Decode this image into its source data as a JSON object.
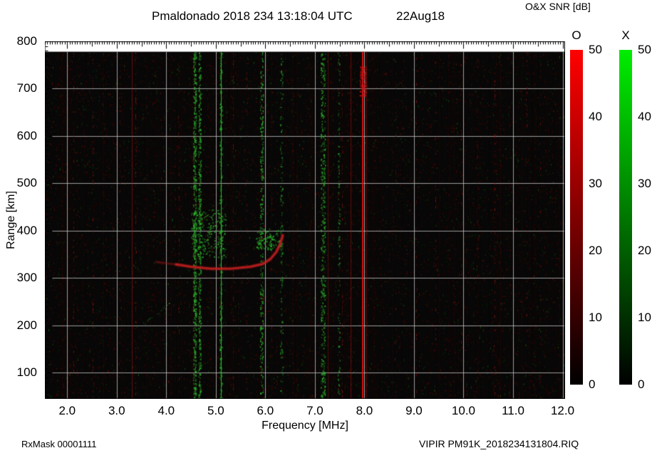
{
  "header": {
    "title": "Pmaldonado 2018 234 13:18:04 UTC",
    "date": "22Aug18",
    "colorbar_title": "O&X SNR [dB]"
  },
  "footer": {
    "left": "RxMask 00001111",
    "right": "VIPIR  PM91K_2018234131804.RIQ"
  },
  "chart_data": {
    "type": "heatmap",
    "title": "Pmaldonado 2018 234 13:18:04 UTC 22Aug18",
    "xlabel": "Frequency [MHz]",
    "ylabel": "Range [km]",
    "xlim": [
      1.55,
      12.05
    ],
    "ylim": [
      45,
      800
    ],
    "x_ticks": [
      2,
      3,
      4,
      5,
      6,
      7,
      8,
      9,
      10,
      11,
      12
    ],
    "x_tick_labels": [
      "2.0",
      "3.0",
      "4.0",
      "5.0",
      "6.0",
      "7.0",
      "8.0",
      "9.0",
      "10.0",
      "11.0",
      "12.0"
    ],
    "y_ticks": [
      800,
      700,
      600,
      500,
      400,
      300,
      200,
      100
    ],
    "y_grid": [
      100,
      200,
      300,
      400,
      500,
      600,
      700
    ],
    "grid": true,
    "grid_color": "rgba(205,205,205,0.75)",
    "background": "#070707",
    "data_top_km": 778,
    "colorbars": [
      {
        "label": "O",
        "min": 0,
        "max": 50,
        "ticks": [
          50,
          40,
          30,
          20,
          10,
          0
        ],
        "top_color": "#ff0000",
        "bottom_color": "#000000"
      },
      {
        "label": "X",
        "min": 0,
        "max": 50,
        "ticks": [
          50,
          40,
          30,
          20,
          10,
          0
        ],
        "top_color": "#00ee00",
        "bottom_color": "#000000"
      }
    ],
    "noise": {
      "count": 12000,
      "green_fraction": 0.2,
      "stripes": 150
    },
    "rfi_lines": [
      {
        "freq": 2.13,
        "style": "speckle",
        "color": "#8c1212",
        "density": 0.16
      },
      {
        "freq": 2.52,
        "style": "speckle",
        "color": "#8c1212",
        "density": 0.18
      },
      {
        "freq": 3.06,
        "style": "speckle",
        "color": "#7a1010",
        "density": 0.12
      },
      {
        "freq": 3.31,
        "style": "solid",
        "color": "#b51414",
        "alpha": 0.5,
        "width": 1
      },
      {
        "freq": 3.38,
        "style": "speckle",
        "color": "#9a1212",
        "density": 0.22
      },
      {
        "freq": 4.26,
        "style": "speckle",
        "color": "#8c1212",
        "density": 0.14
      },
      {
        "freq": 5.1,
        "style": "solid",
        "color": "#2fd42f",
        "alpha": 0.85,
        "width": 1
      },
      {
        "freq": 5.35,
        "style": "speckle",
        "color": "#8c1212",
        "density": 0.18
      },
      {
        "freq": 5.62,
        "style": "speckle",
        "color": "#7a1010",
        "density": 0.11
      },
      {
        "freq": 5.95,
        "style": "speckle",
        "color": "#9a1212",
        "density": 0.2
      },
      {
        "freq": 6.12,
        "style": "speckle",
        "color": "#7a1010",
        "density": 0.1
      },
      {
        "freq": 6.55,
        "style": "speckle",
        "color": "#7a1010",
        "density": 0.1
      },
      {
        "freq": 7.26,
        "style": "solid",
        "color": "#a81212",
        "alpha": 0.4,
        "width": 1
      },
      {
        "freq": 7.55,
        "style": "speckle",
        "color": "#8c1212",
        "density": 0.16
      },
      {
        "freq": 7.72,
        "style": "solid",
        "color": "#b51414",
        "alpha": 0.5,
        "width": 1
      },
      {
        "freq": 7.955,
        "style": "solid",
        "color": "#e61111",
        "alpha": 0.95,
        "width": 2
      },
      {
        "freq": 8.03,
        "style": "solid",
        "color": "#a81212",
        "alpha": 0.45,
        "width": 1
      },
      {
        "freq": 8.63,
        "style": "speckle",
        "color": "#7a1010",
        "density": 0.11
      },
      {
        "freq": 9.05,
        "style": "speckle",
        "color": "#7a1010",
        "density": 0.09
      },
      {
        "freq": 9.43,
        "style": "speckle",
        "color": "#8c1212",
        "density": 0.13
      },
      {
        "freq": 9.95,
        "style": "speckle",
        "color": "#7a1010",
        "density": 0.09
      },
      {
        "freq": 10.28,
        "style": "speckle",
        "color": "#7a1010",
        "density": 0.11
      },
      {
        "freq": 10.62,
        "style": "speckle",
        "color": "#9a1212",
        "density": 0.2
      },
      {
        "freq": 11.28,
        "style": "speckle",
        "color": "#8c1212",
        "density": 0.13
      },
      {
        "freq": 11.55,
        "style": "speckle",
        "color": "#7a1010",
        "density": 0.11
      }
    ],
    "speckle_bands": [
      {
        "freq": 4.57,
        "width": 0.06,
        "count": 650,
        "color": "#2db82d"
      },
      {
        "freq": 4.67,
        "width": 0.05,
        "count": 420,
        "color": "#2db82d"
      },
      {
        "freq": 5.1,
        "width": 0.05,
        "count": 240,
        "color": "#2db82d"
      },
      {
        "freq": 5.92,
        "width": 0.06,
        "count": 300,
        "color": "#2db82d"
      },
      {
        "freq": 6.32,
        "width": 0.05,
        "count": 150,
        "color": "#289c28"
      },
      {
        "freq": 7.16,
        "width": 0.09,
        "count": 450,
        "color": "#2db82d"
      },
      {
        "freq": 7.48,
        "width": 0.04,
        "count": 110,
        "color": "#289c28"
      }
    ],
    "scatter_patches": [
      {
        "color": "#2db82d",
        "freq": [
          4.5,
          5.2
        ],
        "range": [
          345,
          445
        ],
        "count": 240
      },
      {
        "color": "#2db82d",
        "freq": [
          5.8,
          6.3
        ],
        "range": [
          360,
          405
        ],
        "count": 130
      },
      {
        "color": "#cc1515",
        "freq": [
          7.9,
          8.02
        ],
        "range": [
          685,
          748
        ],
        "count": 150
      }
    ],
    "echo_traces": [
      {
        "name": "O-trace-lead",
        "style": "line",
        "color": "#8f1515",
        "width": 2.5,
        "alpha": 0.45,
        "points": [
          [
            3.8,
            334
          ],
          [
            4.0,
            331
          ],
          [
            4.2,
            329
          ]
        ]
      },
      {
        "name": "O-trace-main",
        "style": "line",
        "color": "#c41e1e",
        "width": 3,
        "alpha": 0.85,
        "points": [
          [
            4.2,
            329
          ],
          [
            4.5,
            324
          ],
          [
            4.9,
            320
          ],
          [
            5.3,
            320
          ],
          [
            5.7,
            324
          ],
          [
            5.95,
            330
          ],
          [
            6.1,
            340
          ],
          [
            6.22,
            355
          ],
          [
            6.3,
            372
          ],
          [
            6.35,
            390
          ]
        ]
      },
      {
        "name": "X-scatter-streak",
        "style": "speckle",
        "color": "#2fae2f",
        "width": 2,
        "alpha": 0.5,
        "points": [
          [
            3.52,
            202
          ],
          [
            3.8,
            225
          ],
          [
            4.1,
            248
          ]
        ]
      }
    ]
  }
}
